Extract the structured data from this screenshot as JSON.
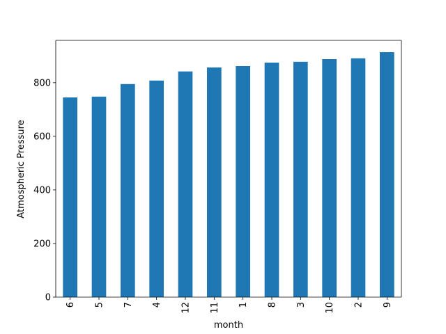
{
  "chart_data": {
    "type": "bar",
    "x_label": "month",
    "y_label": "Atmospheric Pressure",
    "categories": [
      "6",
      "5",
      "7",
      "4",
      "12",
      "11",
      "1",
      "8",
      "3",
      "10",
      "2",
      "9"
    ],
    "values": [
      745,
      748,
      795,
      808,
      842,
      857,
      862,
      875,
      878,
      888,
      891,
      914
    ],
    "color": "#1f77b4",
    "ylim": [
      0,
      958
    ],
    "yticks": [
      0,
      200,
      400,
      600,
      800
    ],
    "grid": false
  }
}
